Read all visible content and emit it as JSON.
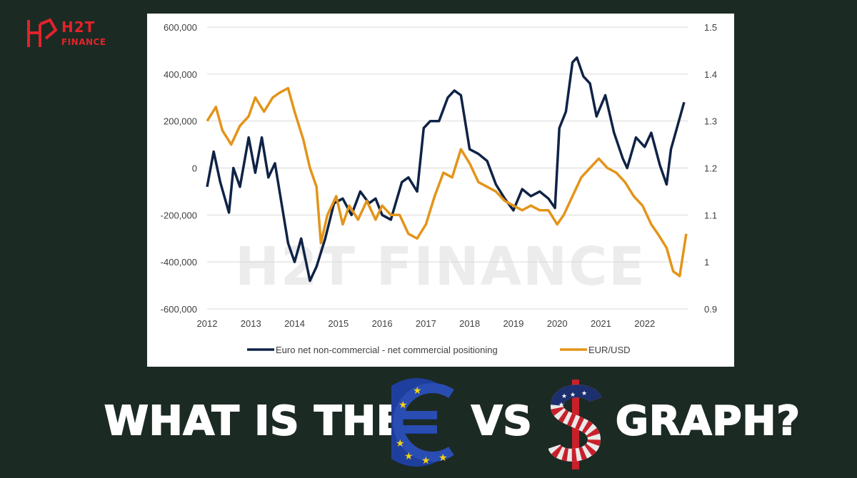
{
  "brand": {
    "logo_text": "H2T",
    "logo_sub": "FINANCE",
    "watermark": "H2T FINANCE"
  },
  "headline": {
    "part1": "WHAT IS THE",
    "part2": "VS",
    "part3": "GRAPH?",
    "symbol1": "euro-icon",
    "symbol2": "dollar-icon"
  },
  "chart_data": {
    "type": "line",
    "x_ticks": [
      "2012",
      "2013",
      "2014",
      "2015",
      "2016",
      "2017",
      "2018",
      "2019",
      "2020",
      "2021",
      "2022"
    ],
    "xlim": [
      2012,
      2023
    ],
    "y_left_ticks": [
      "600,000",
      "400,000",
      "200,000",
      "0",
      "-200,000",
      "-400,000",
      "-600,000"
    ],
    "y_left_range": [
      -600000,
      600000
    ],
    "y_right_ticks": [
      "1.5",
      "1.4",
      "1.3",
      "1.2",
      "1.1",
      "1",
      "0.9"
    ],
    "y_right_range": [
      0.9,
      1.5
    ],
    "grid": true,
    "legend_position": "bottom",
    "series": [
      {
        "name": "Euro net non-commercial - net commercial positioning",
        "axis": "left",
        "color": "#0f2346",
        "x": [
          2012.0,
          2012.15,
          2012.3,
          2012.5,
          2012.6,
          2012.75,
          2012.95,
          2013.1,
          2013.25,
          2013.4,
          2013.55,
          2013.7,
          2013.85,
          2014.0,
          2014.15,
          2014.35,
          2014.5,
          2014.7,
          2014.9,
          2015.1,
          2015.3,
          2015.5,
          2015.7,
          2015.85,
          2016.0,
          2016.2,
          2016.45,
          2016.6,
          2016.8,
          2016.95,
          2017.1,
          2017.3,
          2017.5,
          2017.65,
          2017.8,
          2018.0,
          2018.2,
          2018.4,
          2018.6,
          2018.8,
          2019.0,
          2019.2,
          2019.4,
          2019.6,
          2019.8,
          2019.95,
          2020.05,
          2020.2,
          2020.35,
          2020.45,
          2020.6,
          2020.75,
          2020.9,
          2021.1,
          2021.3,
          2021.5,
          2021.6,
          2021.8,
          2022.0,
          2022.15,
          2022.35,
          2022.5,
          2022.6,
          2022.75,
          2022.9
        ],
        "values": [
          -80000,
          70000,
          -60000,
          -190000,
          0,
          -80000,
          130000,
          -20000,
          130000,
          -40000,
          20000,
          -150000,
          -320000,
          -400000,
          -300000,
          -480000,
          -420000,
          -300000,
          -150000,
          -130000,
          -200000,
          -100000,
          -150000,
          -130000,
          -200000,
          -220000,
          -60000,
          -40000,
          -100000,
          170000,
          200000,
          200000,
          300000,
          330000,
          310000,
          80000,
          60000,
          30000,
          -70000,
          -130000,
          -180000,
          -90000,
          -120000,
          -100000,
          -130000,
          -170000,
          170000,
          240000,
          450000,
          470000,
          390000,
          360000,
          220000,
          310000,
          150000,
          40000,
          0,
          130000,
          90000,
          150000,
          10000,
          -70000,
          80000,
          180000,
          280000
        ]
      },
      {
        "name": "EUR/USD",
        "axis": "right",
        "color": "#e39419",
        "x": [
          2012.0,
          2012.2,
          2012.35,
          2012.55,
          2012.75,
          2012.95,
          2013.1,
          2013.3,
          2013.5,
          2013.65,
          2013.85,
          2014.0,
          2014.2,
          2014.35,
          2014.5,
          2014.6,
          2014.75,
          2014.95,
          2015.1,
          2015.25,
          2015.45,
          2015.65,
          2015.85,
          2016.0,
          2016.2,
          2016.4,
          2016.6,
          2016.8,
          2017.0,
          2017.2,
          2017.4,
          2017.6,
          2017.8,
          2018.0,
          2018.2,
          2018.4,
          2018.6,
          2018.8,
          2019.0,
          2019.2,
          2019.4,
          2019.6,
          2019.8,
          2020.0,
          2020.15,
          2020.35,
          2020.55,
          2020.75,
          2020.95,
          2021.15,
          2021.35,
          2021.55,
          2021.75,
          2021.95,
          2022.15,
          2022.3,
          2022.5,
          2022.65,
          2022.8,
          2022.95
        ],
        "values": [
          1.3,
          1.33,
          1.28,
          1.25,
          1.29,
          1.31,
          1.35,
          1.32,
          1.35,
          1.36,
          1.37,
          1.32,
          1.26,
          1.2,
          1.16,
          1.04,
          1.1,
          1.14,
          1.08,
          1.12,
          1.09,
          1.13,
          1.09,
          1.12,
          1.1,
          1.1,
          1.06,
          1.05,
          1.08,
          1.14,
          1.19,
          1.18,
          1.24,
          1.21,
          1.17,
          1.16,
          1.15,
          1.13,
          1.12,
          1.11,
          1.12,
          1.11,
          1.11,
          1.08,
          1.1,
          1.14,
          1.18,
          1.2,
          1.22,
          1.2,
          1.19,
          1.17,
          1.14,
          1.12,
          1.08,
          1.06,
          1.03,
          0.98,
          0.97,
          1.06
        ]
      }
    ]
  }
}
